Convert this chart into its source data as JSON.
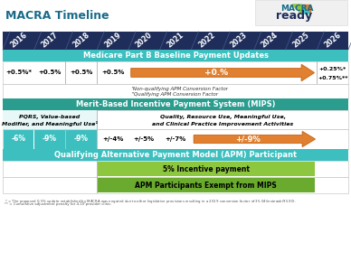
{
  "title": "MACRA Timeline",
  "title_color": "#1a6b8a",
  "years": [
    "2016",
    "2017",
    "2018",
    "2019",
    "2020",
    "2021",
    "2022",
    "2023",
    "2024",
    "2025",
    "2026"
  ],
  "header_bg": "#1e2d5a",
  "header_text_color": "#ffffff",
  "teal_bg": "#3dbfbf",
  "teal_dark": "#2a9d8f",
  "orange_arrow": "#e08030",
  "orange_dark": "#c06820",
  "green_light": "#8dc63f",
  "green_dark": "#6aaa2e",
  "white": "#ffffff",
  "border_color": "#bbbbbb",
  "cell_bg_light": "#e8f8f8",
  "section1_title": "Medicare Part B Baseline Payment Updates",
  "section2_title": "Merit-Based Incentive Payment System (MIPS)",
  "section3_title": "Qualifying Alternative Payment Model (APM) Participant",
  "row1_vals": [
    "+0.5%*",
    "+0.5%",
    "+0.5%",
    "+0.5%"
  ],
  "arrow1_text": "+0.%",
  "row1_right_top": "+0.25%*",
  "row1_right_bot": "+0.75%**",
  "footnote1": "’Non-qualifying APM Conversion Factor",
  "footnote2": "”Qualifying APM Conversion Factor",
  "mips_left_label1": "PQRS, Value-based",
  "mips_left_label2": "Modifier, and Meaningful Use¹",
  "mips_right_label1": "Quality, Resource Use, Meaningful Use,",
  "mips_right_label2": "and Clinical Practice Improvement Activities",
  "mips_row_vals": [
    "-6%",
    "-9%",
    "-9%",
    "+/-4%",
    "+/-5%",
    "+/-7%"
  ],
  "mips_arrow_text": "+/-9%",
  "apm_row1": "5% Incentive payment",
  "apm_row2": "APM Participants Exempt from MIPS",
  "footnote_bottom1": "* = The proposed 0.5% update established by MACRA was negated due to other legislative provisions resulting in a 2019 conversion factor of $35.04 (instead of $35.90).",
  "footnote_bottom2": "** = Cumulative adjustment penalty for 4-10 provider clinic.",
  "logo_color_macra": "#1a6b8a",
  "logo_color_ready": "#1e2d5a"
}
